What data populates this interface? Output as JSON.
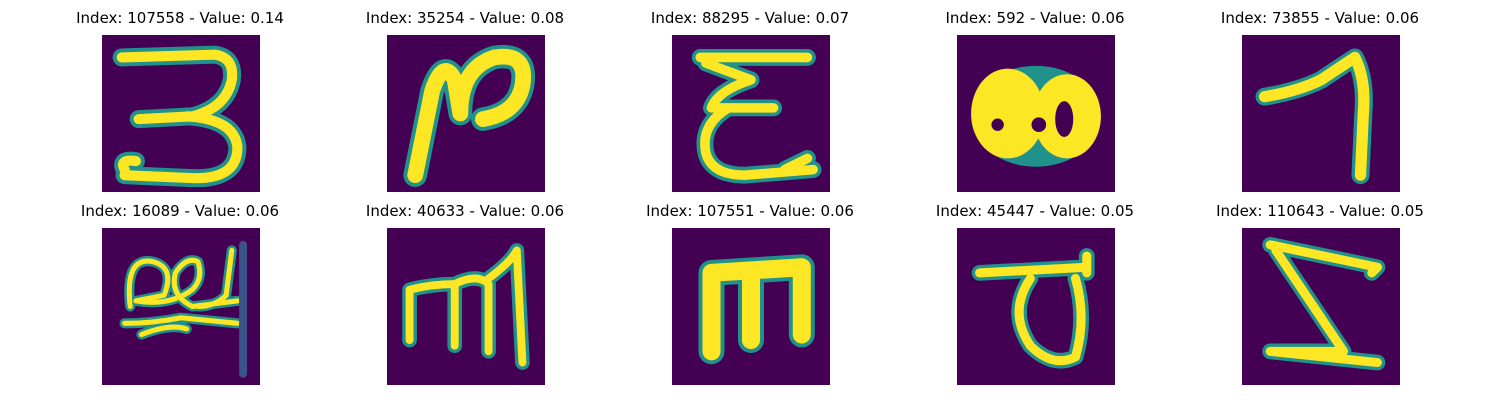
{
  "colors": {
    "background": "#440154",
    "mid_low": "#3b528b",
    "mid": "#21918c",
    "mid_high": "#5ec962",
    "foreground": "#fde725"
  },
  "panels": [
    {
      "title": "Index: 107558 - Value: 0.14",
      "glyph": "3"
    },
    {
      "title": "Index: 35254 - Value: 0.08",
      "glyph": "N-curl"
    },
    {
      "title": "Index: 88295 - Value: 0.07",
      "glyph": "E-like"
    },
    {
      "title": "Index: 592 - Value: 0.06",
      "glyph": "blob"
    },
    {
      "title": "Index: 73855 - Value: 0.06",
      "glyph": "7-like"
    },
    {
      "title": "Index: 16089 - Value: 0.06",
      "glyph": "scribble"
    },
    {
      "title": "Index: 40633 - Value: 0.06",
      "glyph": "m-like"
    },
    {
      "title": "Index: 107551 - Value: 0.06",
      "glyph": "E-block"
    },
    {
      "title": "Index: 45447 - Value: 0.05",
      "glyph": "loop-under-bar"
    },
    {
      "title": "Index: 110643 - Value: 0.05",
      "glyph": "Z-like"
    }
  ]
}
